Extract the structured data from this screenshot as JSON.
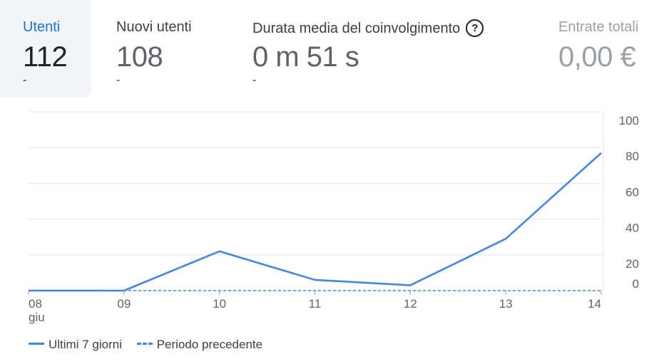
{
  "metrics": [
    {
      "label": "Utenti",
      "value": "112",
      "delta": "-"
    },
    {
      "label": "Nuovi utenti",
      "value": "108",
      "delta": "-"
    },
    {
      "label": "Durata media del coinvolgimento",
      "value": "0 m 51 s",
      "delta": "-",
      "help_icon": "help-circle-icon"
    },
    {
      "label": "Entrate totali",
      "value": "0,00 €"
    }
  ],
  "chart_data": {
    "type": "line",
    "categories": [
      "08",
      "09",
      "10",
      "11",
      "12",
      "13",
      "14"
    ],
    "x_sublabel": "giu",
    "series": [
      {
        "name": "Ultimi 7 giorni",
        "values": [
          0,
          0,
          22,
          6,
          3,
          29,
          77
        ],
        "style": "solid",
        "color": "#4285f4"
      },
      {
        "name": "Periodo precedente",
        "values": [
          0,
          0,
          0,
          0,
          0,
          0,
          0
        ],
        "style": "dashed",
        "color": "#4285f4"
      }
    ],
    "y_ticks": [
      "100",
      "80",
      "60",
      "40",
      "20",
      "0"
    ],
    "ylim": [
      0,
      100
    ],
    "grid": true,
    "legend_position": "bottom-left"
  }
}
